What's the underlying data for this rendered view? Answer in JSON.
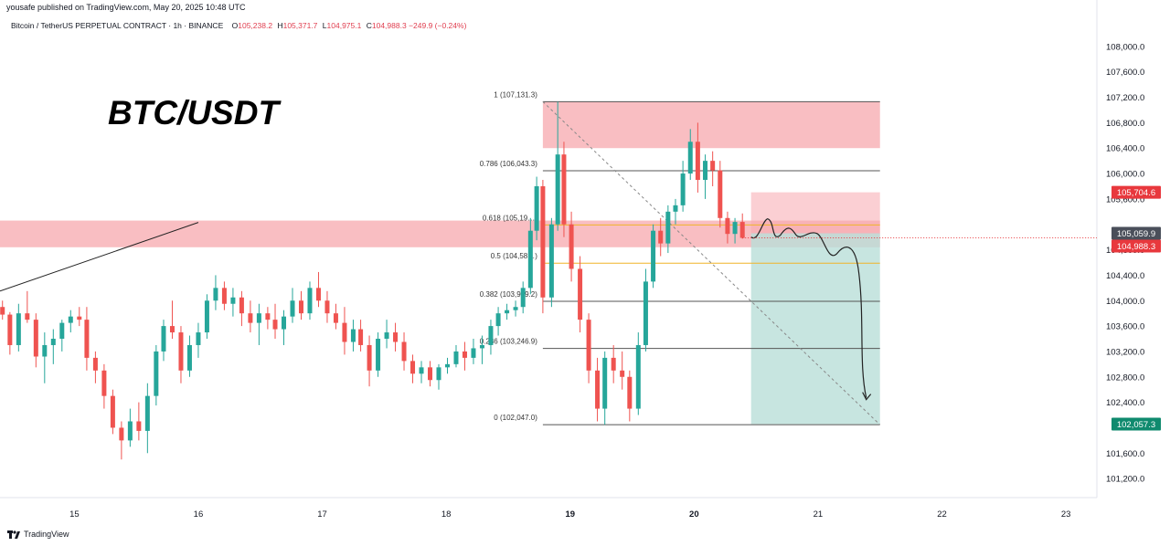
{
  "header": {
    "publisher": "yousafe published on TradingView.com, May 20, 2025 10:48 UTC",
    "symbol": "Bitcoin / TetherUS PERPETUAL CONTRACT · 1h · BINANCE",
    "open_label": "O",
    "open": "105,238.2",
    "high_label": "H",
    "high": "105,371.7",
    "low_label": "L",
    "low": "104,975.1",
    "close_label": "C",
    "close": "104,988.3",
    "change": "−249.9 (−0.24%)"
  },
  "footer": {
    "brand": "TradingView",
    "logo_icon": "tradingview-logo-icon"
  },
  "colors": {
    "up": "#26a69a",
    "down": "#ef5350",
    "zone": "#f7a8ae",
    "target": "#b9ded8",
    "fib_golden": "#f0b429",
    "fib_line": "#555555"
  },
  "chart_data": {
    "type": "candlestick",
    "title": "BTC/USDT",
    "timeframe": "1h",
    "x_ticks": [
      "15",
      "16",
      "17",
      "18",
      "19",
      "20",
      "21",
      "22",
      "23"
    ],
    "y_ticks": [
      "108,000.0",
      "107,600.0",
      "107,200.0",
      "106,800.0",
      "106,400.0",
      "106,000.0",
      "105,600.0",
      "104,800.0",
      "104,400.0",
      "104,000.0",
      "103,600.0",
      "103,200.0",
      "102,800.0",
      "102,400.0",
      "101,600.0",
      "101,200.0"
    ],
    "y_tick_values": [
      108000,
      107600,
      107200,
      106800,
      106400,
      106000,
      105600,
      104800,
      104400,
      104000,
      103600,
      103200,
      102800,
      102400,
      101600,
      101200
    ],
    "ylim": [
      100900,
      108300
    ],
    "xlim": [
      14.4,
      23.25
    ],
    "fibonacci": [
      {
        "level": "1",
        "price": 107131.3,
        "label": "1 (107,131.3)"
      },
      {
        "level": "0.786",
        "price": 106043.3,
        "label": "0.786 (106,043.3)"
      },
      {
        "level": "0.618",
        "price": 105191.3,
        "label": "0.618 (105,19…)",
        "golden": true
      },
      {
        "level": "0.5",
        "price": 104589.3,
        "label": "0.5 (104,58…)",
        "golden": true
      },
      {
        "level": "0.382",
        "price": 103989.2,
        "label": "0.382 (103,989.2)"
      },
      {
        "level": "0.236",
        "price": 103246.9,
        "label": "0.236 (103,246.9)"
      },
      {
        "level": "0",
        "price": 102047.0,
        "label": "0 (102,047.0)"
      }
    ],
    "price_tags": [
      {
        "price": 105704.6,
        "label": "105,704.6",
        "color": "#e8383d"
      },
      {
        "price": 105059.9,
        "label": "105,059.9",
        "color": "#4a4f5a"
      },
      {
        "price": 104988.3,
        "label": "104,988.3",
        "color": "#e8383d"
      },
      {
        "price": 102057.3,
        "label": "102,057.3",
        "color": "#0f8a6e"
      }
    ],
    "zones": {
      "supply_left": {
        "from": 14.4,
        "to": 21.5,
        "top": 105260,
        "bottom": 104840
      },
      "supply_top": {
        "from": 18.78,
        "to": 21.5,
        "top": 107131.3,
        "bottom": 106400
      },
      "short_stop": {
        "from": 20.46,
        "to": 21.5,
        "top": 105704.6,
        "bottom": 105059.9
      },
      "short_target": {
        "from": 20.46,
        "to": 21.5,
        "top": 105059.9,
        "bottom": 102057.3
      }
    },
    "trendline": {
      "from": [
        14.4,
        104150
      ],
      "to": [
        16.0,
        105230
      ]
    },
    "candles": [
      {
        "t": 14.42,
        "o": 103900,
        "h": 104000,
        "l": 103700,
        "c": 103780
      },
      {
        "t": 14.48,
        "o": 103780,
        "h": 103820,
        "l": 103150,
        "c": 103300
      },
      {
        "t": 14.55,
        "o": 103300,
        "h": 103950,
        "l": 103200,
        "c": 103800
      },
      {
        "t": 14.62,
        "o": 103800,
        "h": 104150,
        "l": 103650,
        "c": 103700
      },
      {
        "t": 14.69,
        "o": 103700,
        "h": 103800,
        "l": 102950,
        "c": 103120
      },
      {
        "t": 14.76,
        "o": 103120,
        "h": 103500,
        "l": 102700,
        "c": 103300
      },
      {
        "t": 14.83,
        "o": 103300,
        "h": 103550,
        "l": 103000,
        "c": 103400
      },
      {
        "t": 14.9,
        "o": 103400,
        "h": 103700,
        "l": 103200,
        "c": 103650
      },
      {
        "t": 14.97,
        "o": 103650,
        "h": 103850,
        "l": 103500,
        "c": 103750
      },
      {
        "t": 15.04,
        "o": 103750,
        "h": 103900,
        "l": 103600,
        "c": 103700
      },
      {
        "t": 15.1,
        "o": 103700,
        "h": 103900,
        "l": 102900,
        "c": 103100
      },
      {
        "t": 15.17,
        "o": 103100,
        "h": 103200,
        "l": 102700,
        "c": 102900
      },
      {
        "t": 15.24,
        "o": 102900,
        "h": 103000,
        "l": 102300,
        "c": 102500
      },
      {
        "t": 15.31,
        "o": 102500,
        "h": 102600,
        "l": 101900,
        "c": 102000
      },
      {
        "t": 15.38,
        "o": 102000,
        "h": 102100,
        "l": 101500,
        "c": 101800
      },
      {
        "t": 15.45,
        "o": 101800,
        "h": 102300,
        "l": 101700,
        "c": 102100
      },
      {
        "t": 15.52,
        "o": 102100,
        "h": 102400,
        "l": 101800,
        "c": 101950
      },
      {
        "t": 15.59,
        "o": 101950,
        "h": 102700,
        "l": 101600,
        "c": 102500
      },
      {
        "t": 15.66,
        "o": 102500,
        "h": 103300,
        "l": 102350,
        "c": 103200
      },
      {
        "t": 15.72,
        "o": 103200,
        "h": 103700,
        "l": 103050,
        "c": 103600
      },
      {
        "t": 15.79,
        "o": 103600,
        "h": 104000,
        "l": 103400,
        "c": 103500
      },
      {
        "t": 15.86,
        "o": 103500,
        "h": 103600,
        "l": 102700,
        "c": 102900
      },
      {
        "t": 15.93,
        "o": 102900,
        "h": 103450,
        "l": 102800,
        "c": 103300
      },
      {
        "t": 16.0,
        "o": 103300,
        "h": 103650,
        "l": 103100,
        "c": 103500
      },
      {
        "t": 16.07,
        "o": 103500,
        "h": 104100,
        "l": 103400,
        "c": 104000
      },
      {
        "t": 16.14,
        "o": 104000,
        "h": 104400,
        "l": 103850,
        "c": 104200
      },
      {
        "t": 16.21,
        "o": 104200,
        "h": 104300,
        "l": 103850,
        "c": 103950
      },
      {
        "t": 16.28,
        "o": 103950,
        "h": 104200,
        "l": 103750,
        "c": 104050
      },
      {
        "t": 16.35,
        "o": 104050,
        "h": 104150,
        "l": 103600,
        "c": 103800
      },
      {
        "t": 16.42,
        "o": 103800,
        "h": 104000,
        "l": 103500,
        "c": 103650
      },
      {
        "t": 16.49,
        "o": 103650,
        "h": 103950,
        "l": 103300,
        "c": 103800
      },
      {
        "t": 16.56,
        "o": 103800,
        "h": 103900,
        "l": 103550,
        "c": 103700
      },
      {
        "t": 16.62,
        "o": 103700,
        "h": 103950,
        "l": 103400,
        "c": 103550
      },
      {
        "t": 16.69,
        "o": 103550,
        "h": 103850,
        "l": 103300,
        "c": 103750
      },
      {
        "t": 16.76,
        "o": 103750,
        "h": 104200,
        "l": 103650,
        "c": 104000
      },
      {
        "t": 16.83,
        "o": 104000,
        "h": 104150,
        "l": 103700,
        "c": 103800
      },
      {
        "t": 16.9,
        "o": 103800,
        "h": 104300,
        "l": 103700,
        "c": 104200
      },
      {
        "t": 16.97,
        "o": 104200,
        "h": 104450,
        "l": 103900,
        "c": 104000
      },
      {
        "t": 17.04,
        "o": 104000,
        "h": 104150,
        "l": 103650,
        "c": 103800
      },
      {
        "t": 17.11,
        "o": 103800,
        "h": 103950,
        "l": 103550,
        "c": 103650
      },
      {
        "t": 17.18,
        "o": 103650,
        "h": 103900,
        "l": 103150,
        "c": 103350
      },
      {
        "t": 17.25,
        "o": 103350,
        "h": 103700,
        "l": 103200,
        "c": 103550
      },
      {
        "t": 17.31,
        "o": 103550,
        "h": 103700,
        "l": 103200,
        "c": 103300
      },
      {
        "t": 17.38,
        "o": 103300,
        "h": 103450,
        "l": 102650,
        "c": 102900
      },
      {
        "t": 17.45,
        "o": 102900,
        "h": 103500,
        "l": 102800,
        "c": 103400
      },
      {
        "t": 17.52,
        "o": 103400,
        "h": 103700,
        "l": 103250,
        "c": 103500
      },
      {
        "t": 17.59,
        "o": 103500,
        "h": 103650,
        "l": 103200,
        "c": 103350
      },
      {
        "t": 17.66,
        "o": 103350,
        "h": 103500,
        "l": 102900,
        "c": 103050
      },
      {
        "t": 17.73,
        "o": 103050,
        "h": 103150,
        "l": 102700,
        "c": 102850
      },
      {
        "t": 17.8,
        "o": 102850,
        "h": 103050,
        "l": 102700,
        "c": 102950
      },
      {
        "t": 17.87,
        "o": 102950,
        "h": 103050,
        "l": 102650,
        "c": 102750
      },
      {
        "t": 17.94,
        "o": 102750,
        "h": 103000,
        "l": 102600,
        "c": 102950
      },
      {
        "t": 18.01,
        "o": 102950,
        "h": 103100,
        "l": 102850,
        "c": 103000
      },
      {
        "t": 18.08,
        "o": 103000,
        "h": 103300,
        "l": 102950,
        "c": 103200
      },
      {
        "t": 18.15,
        "o": 103200,
        "h": 103350,
        "l": 102900,
        "c": 103100
      },
      {
        "t": 18.22,
        "o": 103100,
        "h": 103400,
        "l": 103000,
        "c": 103250
      },
      {
        "t": 18.29,
        "o": 103250,
        "h": 103450,
        "l": 103000,
        "c": 103300
      },
      {
        "t": 18.36,
        "o": 103300,
        "h": 103700,
        "l": 103150,
        "c": 103600
      },
      {
        "t": 18.42,
        "o": 103600,
        "h": 103900,
        "l": 103450,
        "c": 103800
      },
      {
        "t": 18.49,
        "o": 103800,
        "h": 103950,
        "l": 103700,
        "c": 103850
      },
      {
        "t": 18.56,
        "o": 103850,
        "h": 104000,
        "l": 103750,
        "c": 103900
      },
      {
        "t": 18.62,
        "o": 103900,
        "h": 104300,
        "l": 103800,
        "c": 104200
      },
      {
        "t": 18.68,
        "o": 104200,
        "h": 105300,
        "l": 104100,
        "c": 105100
      },
      {
        "t": 18.73,
        "o": 105100,
        "h": 105950,
        "l": 104950,
        "c": 105800
      },
      {
        "t": 18.78,
        "o": 105800,
        "h": 105900,
        "l": 103800,
        "c": 104050
      },
      {
        "t": 18.85,
        "o": 104050,
        "h": 105300,
        "l": 103900,
        "c": 105200
      },
      {
        "t": 18.9,
        "o": 105200,
        "h": 107131,
        "l": 105100,
        "c": 106300
      },
      {
        "t": 18.95,
        "o": 106300,
        "h": 106500,
        "l": 105000,
        "c": 105200
      },
      {
        "t": 19.01,
        "o": 105200,
        "h": 105400,
        "l": 104300,
        "c": 104500
      },
      {
        "t": 19.08,
        "o": 104500,
        "h": 104700,
        "l": 103500,
        "c": 103700
      },
      {
        "t": 19.15,
        "o": 103700,
        "h": 103800,
        "l": 102700,
        "c": 102900
      },
      {
        "t": 19.22,
        "o": 102900,
        "h": 103100,
        "l": 102100,
        "c": 102300
      },
      {
        "t": 19.28,
        "o": 102300,
        "h": 103200,
        "l": 102047,
        "c": 103100
      },
      {
        "t": 19.35,
        "o": 103100,
        "h": 103300,
        "l": 102700,
        "c": 102900
      },
      {
        "t": 19.42,
        "o": 102900,
        "h": 103200,
        "l": 102600,
        "c": 102800
      },
      {
        "t": 19.48,
        "o": 102800,
        "h": 102900,
        "l": 102100,
        "c": 102300
      },
      {
        "t": 19.55,
        "o": 102300,
        "h": 103500,
        "l": 102200,
        "c": 103300
      },
      {
        "t": 19.61,
        "o": 103300,
        "h": 104500,
        "l": 103200,
        "c": 104300
      },
      {
        "t": 19.67,
        "o": 104300,
        "h": 105200,
        "l": 104200,
        "c": 105100
      },
      {
        "t": 19.73,
        "o": 105100,
        "h": 105300,
        "l": 104700,
        "c": 104900
      },
      {
        "t": 19.79,
        "o": 104900,
        "h": 105500,
        "l": 104750,
        "c": 105400
      },
      {
        "t": 19.85,
        "o": 105400,
        "h": 105600,
        "l": 105200,
        "c": 105500
      },
      {
        "t": 19.91,
        "o": 105500,
        "h": 106200,
        "l": 105400,
        "c": 106000
      },
      {
        "t": 19.97,
        "o": 106000,
        "h": 106700,
        "l": 105900,
        "c": 106500
      },
      {
        "t": 20.03,
        "o": 106500,
        "h": 106800,
        "l": 105700,
        "c": 105900
      },
      {
        "t": 20.09,
        "o": 105900,
        "h": 106300,
        "l": 105600,
        "c": 106200
      },
      {
        "t": 20.15,
        "o": 106200,
        "h": 106350,
        "l": 105800,
        "c": 106050
      },
      {
        "t": 20.21,
        "o": 106050,
        "h": 106200,
        "l": 105150,
        "c": 105300
      },
      {
        "t": 20.27,
        "o": 105300,
        "h": 105400,
        "l": 104900,
        "c": 105050
      },
      {
        "t": 20.33,
        "o": 105050,
        "h": 105300,
        "l": 104900,
        "c": 105238
      },
      {
        "t": 20.39,
        "o": 105238,
        "h": 105372,
        "l": 104975,
        "c": 104988
      }
    ]
  }
}
